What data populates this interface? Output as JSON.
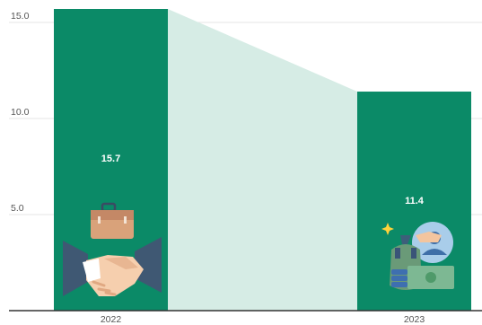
{
  "chart_data": {
    "type": "bar",
    "categories": [
      "2022",
      "2023"
    ],
    "values": [
      15.7,
      11.4
    ],
    "data_labels": [
      "15.7",
      "11.4"
    ],
    "ylim": [
      0,
      15.7
    ],
    "yticks": [
      5.0,
      10.0,
      15.0
    ],
    "ytick_labels": [
      "5.0",
      "10.0",
      "15.0"
    ],
    "title": "",
    "xlabel": "",
    "ylabel": "",
    "grid": true,
    "connector_area": true,
    "colors": {
      "bar": "#0b8a67",
      "connector": "#d6ece5",
      "grid": "#e4e4e4",
      "axis": "#333333"
    },
    "icons": [
      "briefcase-handshake-icon",
      "money-bag-hand-icon"
    ]
  }
}
